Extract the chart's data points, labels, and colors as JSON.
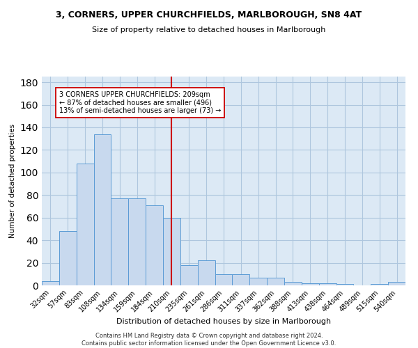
{
  "title_line1": "3, CORNERS, UPPER CHURCHFIELDS, MARLBOROUGH, SN8 4AT",
  "title_line2": "Size of property relative to detached houses in Marlborough",
  "xlabel": "Distribution of detached houses by size in Marlborough",
  "ylabel": "Number of detached properties",
  "categories": [
    "32sqm",
    "57sqm",
    "83sqm",
    "108sqm",
    "134sqm",
    "159sqm",
    "184sqm",
    "210sqm",
    "235sqm",
    "261sqm",
    "286sqm",
    "311sqm",
    "337sqm",
    "362sqm",
    "388sqm",
    "413sqm",
    "438sqm",
    "464sqm",
    "489sqm",
    "515sqm",
    "540sqm"
  ],
  "values": [
    4,
    48,
    108,
    134,
    77,
    77,
    71,
    60,
    18,
    22,
    10,
    10,
    7,
    7,
    3,
    2,
    2,
    1,
    0,
    1,
    3
  ],
  "bar_color": "#c8d9ee",
  "bar_edge_color": "#5b9bd5",
  "grid_color": "#aec6de",
  "background_color": "#dce9f5",
  "vline_color": "#cc0000",
  "annotation_text": "3 CORNERS UPPER CHURCHFIELDS: 209sqm\n← 87% of detached houses are smaller (496)\n13% of semi-detached houses are larger (73) →",
  "annotation_box_color": "#ffffff",
  "annotation_box_edge": "#cc0000",
  "ylim": [
    0,
    185
  ],
  "yticks": [
    0,
    20,
    40,
    60,
    80,
    100,
    120,
    140,
    160,
    180
  ],
  "footer": "Contains HM Land Registry data © Crown copyright and database right 2024.\nContains public sector information licensed under the Open Government Licence v3.0."
}
